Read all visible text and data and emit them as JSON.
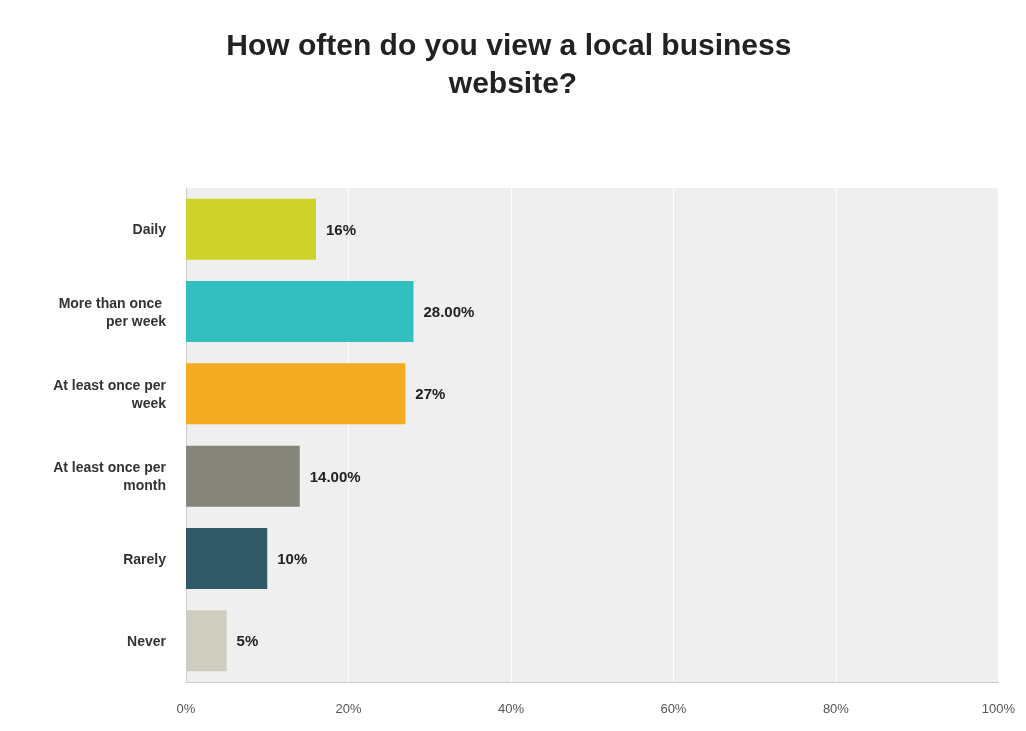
{
  "chart_data": {
    "type": "bar",
    "orientation": "horizontal",
    "title": "How often do you view a local business website?",
    "categories": [
      "Daily",
      "More than once per week",
      "At least once per week",
      "At least once per month",
      "Rarely",
      "Never"
    ],
    "values": [
      16,
      28,
      27,
      14,
      10,
      5
    ],
    "colors": [
      "#cdd32a",
      "#33bec0",
      "#f5ab1f",
      "#85857a",
      "#2f5a66",
      "#cfcdc0"
    ],
    "value_labels": [
      "16%",
      "28.00%",
      "27%",
      "14.00%",
      "10%",
      "5%"
    ],
    "xlim": [
      0,
      100
    ],
    "xticks": [
      {
        "value": 0,
        "label": "0%"
      },
      {
        "value": 20,
        "label": "20%"
      },
      {
        "value": 40,
        "label": "40%"
      },
      {
        "value": 60,
        "label": "60%"
      },
      {
        "value": 80,
        "label": "80%"
      },
      {
        "value": 100,
        "label": "100%"
      }
    ],
    "grid": "x"
  }
}
